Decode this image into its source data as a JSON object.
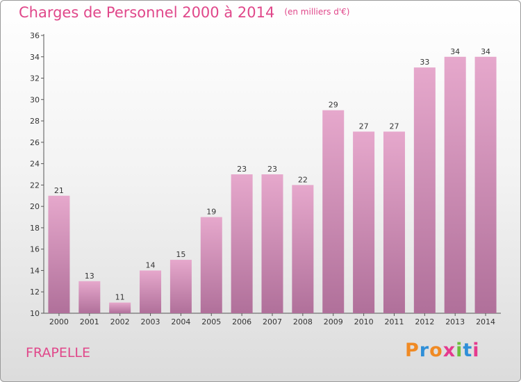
{
  "chart_data": {
    "type": "bar",
    "title": "Charges de Personnel 2000 à 2014",
    "subtitle": "(en milliers d'€)",
    "categories": [
      "2000",
      "2001",
      "2002",
      "2003",
      "2004",
      "2005",
      "2006",
      "2007",
      "2008",
      "2009",
      "2010",
      "2011",
      "2012",
      "2013",
      "2014"
    ],
    "values": [
      21,
      13,
      11,
      14,
      15,
      19,
      23,
      23,
      22,
      29,
      27,
      27,
      33,
      34,
      34
    ],
    "ylim": [
      10,
      36
    ],
    "yticks": [
      10,
      12,
      14,
      16,
      18,
      20,
      22,
      24,
      26,
      28,
      30,
      32,
      34,
      36
    ],
    "grid": false,
    "bar_color_top": "#e6a8cc",
    "bar_color_bottom": "#b0709a"
  },
  "place_name": "FRAPELLE",
  "logo": {
    "letters": [
      "P",
      "r",
      "o",
      "x",
      "i",
      "t",
      "i"
    ],
    "colors": [
      "#f08a24",
      "#2f8fd8",
      "#f08a24",
      "#e53a8e",
      "#6cbf3c",
      "#2f8fd8",
      "#e53a8e"
    ]
  }
}
